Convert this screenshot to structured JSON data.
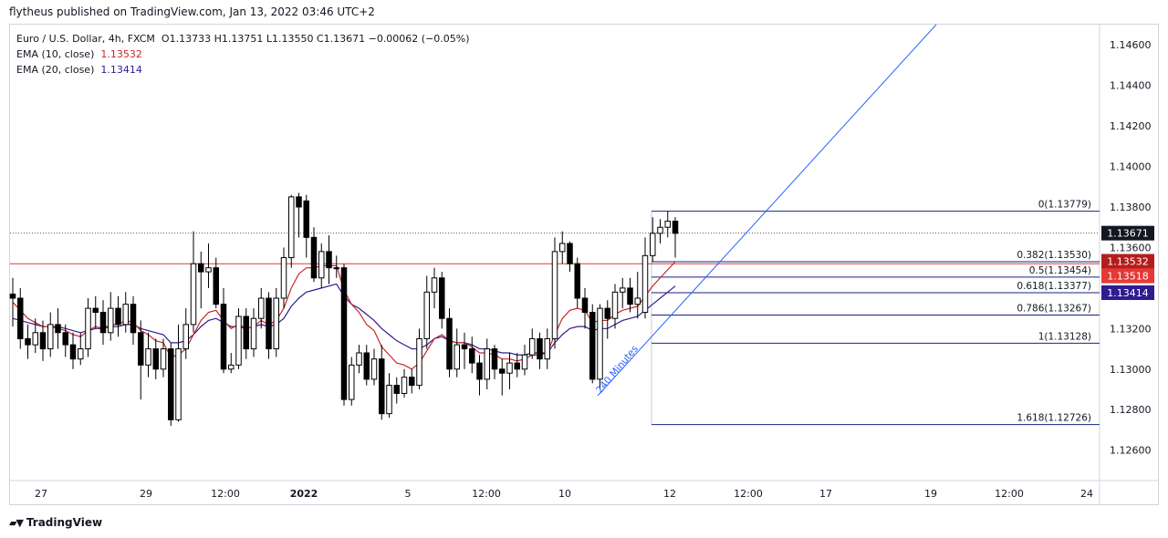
{
  "header": {
    "publish_line": "flytheus published on TradingView.com, Jan 13, 2022 03:46 UTC+2"
  },
  "legend": {
    "symbol": "Euro / U.S. Dollar, 4h, FXCM",
    "ohlc": "O1.13733  H1.13751  L1.13550  C1.13671  −0.00062 (−0.05%)",
    "ema10_label": "EMA (10, close)",
    "ema10_value": "1.13532",
    "ema20_label": "EMA (20, close)",
    "ema20_value": "1.13414"
  },
  "footer": {
    "brand": "TradingView"
  },
  "colors": {
    "candle_up_body": "#ffffff",
    "candle_down_body": "#000000",
    "ema10": "#c62828",
    "ema20": "#311b92",
    "fib_line": "#1a237e",
    "trendline": "#2962ff",
    "horizontal_line": "#e53935",
    "last_price_tag": "#131722",
    "ema10_tag": "#b71c1c",
    "hline_tag": "#e53935",
    "ema20_tag": "#311b92"
  },
  "chart_data": {
    "type": "candlestick",
    "ylim": [
      1.1245,
      1.147
    ],
    "y_ticks": [
      "1.14600",
      "1.14400",
      "1.14200",
      "1.14000",
      "1.13800",
      "1.13600",
      "1.13200",
      "1.13000",
      "1.12800",
      "1.12600"
    ],
    "x_ticks": [
      "27",
      "29",
      "12:00",
      "2022",
      "5",
      "12:00",
      "10",
      "12",
      "12:00",
      "17",
      "19",
      "12:00",
      "24"
    ],
    "last_price": "1.13671",
    "horizontal_line": {
      "value": 1.1352,
      "label": "1.13518"
    },
    "ema_tags": {
      "ema10": "1.13532",
      "ema20": "1.13414"
    },
    "fibonacci": {
      "levels": [
        {
          "label": "0(1.13779)",
          "value": 1.13779
        },
        {
          "label": "0.382(1.13530)",
          "value": 1.1353
        },
        {
          "label": "0.5(1.13454)",
          "value": 1.13454
        },
        {
          "label": "0.618(1.13377)",
          "value": 1.13377
        },
        {
          "label": "0.786(1.13267)",
          "value": 1.13267
        },
        {
          "label": "1(1.13128)",
          "value": 1.13128
        },
        {
          "label": "1.618(1.12726)",
          "value": 1.12726
        }
      ]
    },
    "trendline_label": "240 Minutes",
    "candles": [
      [
        1.1337,
        1.1335,
        1.1345,
        1.1321
      ],
      [
        1.1335,
        1.1315,
        1.134,
        1.131
      ],
      [
        1.1315,
        1.1312,
        1.1322,
        1.1305
      ],
      [
        1.1312,
        1.1318,
        1.1325,
        1.1308
      ],
      [
        1.1318,
        1.131,
        1.1324,
        1.1304
      ],
      [
        1.131,
        1.1322,
        1.1328,
        1.1306
      ],
      [
        1.1322,
        1.1318,
        1.133,
        1.131
      ],
      [
        1.1318,
        1.1312,
        1.1322,
        1.1306
      ],
      [
        1.1312,
        1.1305,
        1.1318,
        1.13
      ],
      [
        1.1305,
        1.131,
        1.1318,
        1.1302
      ],
      [
        1.131,
        1.133,
        1.1335,
        1.1306
      ],
      [
        1.133,
        1.1328,
        1.1336,
        1.132
      ],
      [
        1.1328,
        1.1318,
        1.1334,
        1.1312
      ],
      [
        1.1318,
        1.133,
        1.1338,
        1.1314
      ],
      [
        1.133,
        1.1322,
        1.1336,
        1.1316
      ],
      [
        1.1322,
        1.1332,
        1.1338,
        1.1318
      ],
      [
        1.1332,
        1.1318,
        1.1336,
        1.1312
      ],
      [
        1.1318,
        1.1302,
        1.1324,
        1.1285
      ],
      [
        1.1302,
        1.131,
        1.1318,
        1.1296
      ],
      [
        1.131,
        1.13,
        1.1315,
        1.1295
      ],
      [
        1.13,
        1.131,
        1.1315,
        1.1296
      ],
      [
        1.131,
        1.1275,
        1.1313,
        1.1272
      ],
      [
        1.1275,
        1.131,
        1.1322,
        1.1274
      ],
      [
        1.131,
        1.1322,
        1.133,
        1.1305
      ],
      [
        1.1322,
        1.1352,
        1.1368,
        1.1318
      ],
      [
        1.1352,
        1.1348,
        1.1358,
        1.133
      ],
      [
        1.1348,
        1.135,
        1.1362,
        1.134
      ],
      [
        1.135,
        1.1332,
        1.1355,
        1.133
      ],
      [
        1.1332,
        1.13,
        1.134,
        1.1298
      ],
      [
        1.13,
        1.1302,
        1.1308,
        1.1298
      ],
      [
        1.1302,
        1.1326,
        1.133,
        1.13
      ],
      [
        1.1326,
        1.131,
        1.133,
        1.1305
      ],
      [
        1.131,
        1.1325,
        1.133,
        1.1306
      ],
      [
        1.1325,
        1.1335,
        1.134,
        1.132
      ],
      [
        1.1335,
        1.131,
        1.1338,
        1.1305
      ],
      [
        1.131,
        1.1335,
        1.134,
        1.1306
      ],
      [
        1.1335,
        1.1355,
        1.136,
        1.133
      ],
      [
        1.1355,
        1.1385,
        1.1386,
        1.135
      ],
      [
        1.1385,
        1.138,
        1.1387,
        1.1365
      ],
      [
        1.1383,
        1.1365,
        1.1386,
        1.1355
      ],
      [
        1.1365,
        1.1345,
        1.137,
        1.1343
      ],
      [
        1.1345,
        1.1358,
        1.1362,
        1.134
      ],
      [
        1.1358,
        1.135,
        1.1366,
        1.1342
      ],
      [
        1.135,
        1.135,
        1.1356,
        1.1345
      ],
      [
        1.135,
        1.1285,
        1.1352,
        1.1282
      ],
      [
        1.1285,
        1.1302,
        1.1306,
        1.1282
      ],
      [
        1.1302,
        1.1308,
        1.1312,
        1.1298
      ],
      [
        1.1308,
        1.1295,
        1.1312,
        1.1292
      ],
      [
        1.1295,
        1.1305,
        1.131,
        1.1292
      ],
      [
        1.1305,
        1.1278,
        1.1312,
        1.1275
      ],
      [
        1.1278,
        1.1292,
        1.1298,
        1.1276
      ],
      [
        1.1292,
        1.1288,
        1.1296,
        1.1283
      ],
      [
        1.1288,
        1.1296,
        1.13,
        1.1286
      ],
      [
        1.1296,
        1.1292,
        1.13,
        1.1288
      ],
      [
        1.1292,
        1.1315,
        1.132,
        1.129
      ],
      [
        1.1315,
        1.1338,
        1.1346,
        1.131
      ],
      [
        1.1338,
        1.1345,
        1.135,
        1.133
      ],
      [
        1.1345,
        1.1325,
        1.1348,
        1.132
      ],
      [
        1.1325,
        1.13,
        1.133,
        1.1296
      ],
      [
        1.13,
        1.1312,
        1.132,
        1.1296
      ],
      [
        1.1312,
        1.131,
        1.1318,
        1.13
      ],
      [
        1.131,
        1.1303,
        1.1316,
        1.1298
      ],
      [
        1.1303,
        1.1295,
        1.1307,
        1.1287
      ],
      [
        1.1295,
        1.131,
        1.1315,
        1.129
      ],
      [
        1.131,
        1.13,
        1.1312,
        1.1295
      ],
      [
        1.13,
        1.1298,
        1.1305,
        1.1287
      ],
      [
        1.1298,
        1.1303,
        1.1308,
        1.129
      ],
      [
        1.1303,
        1.13,
        1.1308,
        1.1296
      ],
      [
        1.13,
        1.1307,
        1.1312,
        1.1297
      ],
      [
        1.1307,
        1.1315,
        1.132,
        1.1305
      ],
      [
        1.1315,
        1.1305,
        1.1318,
        1.13
      ],
      [
        1.1305,
        1.1315,
        1.132,
        1.13
      ],
      [
        1.1315,
        1.1358,
        1.1365,
        1.131
      ],
      [
        1.1358,
        1.1362,
        1.1368,
        1.1352
      ],
      [
        1.1362,
        1.1352,
        1.1363,
        1.1348
      ],
      [
        1.1352,
        1.1335,
        1.1355,
        1.133
      ],
      [
        1.1335,
        1.1328,
        1.134,
        1.132
      ],
      [
        1.1328,
        1.1295,
        1.1332,
        1.1293
      ],
      [
        1.1295,
        1.133,
        1.1332,
        1.129
      ],
      [
        1.133,
        1.1325,
        1.1334,
        1.1315
      ],
      [
        1.1325,
        1.1338,
        1.1342,
        1.132
      ],
      [
        1.1338,
        1.134,
        1.1345,
        1.133
      ],
      [
        1.134,
        1.1332,
        1.1345,
        1.1328
      ],
      [
        1.1332,
        1.1335,
        1.1348,
        1.1325
      ],
      [
        1.1328,
        1.1356,
        1.1365,
        1.1325
      ],
      [
        1.1356,
        1.1367,
        1.1375,
        1.1353
      ],
      [
        1.1367,
        1.137,
        1.1374,
        1.1362
      ],
      [
        1.137,
        1.1373,
        1.1378,
        1.1365
      ],
      [
        1.1373,
        1.1367,
        1.1375,
        1.1355
      ]
    ],
    "ema10": [
      1.1333,
      1.1329,
      1.1325,
      1.1323,
      1.1321,
      1.1321,
      1.132,
      1.1319,
      1.1317,
      1.1316,
      1.1319,
      1.1321,
      1.132,
      1.1322,
      1.1322,
      1.1324,
      1.1323,
      1.1319,
      1.1317,
      1.1314,
      1.1313,
      1.1306,
      1.1307,
      1.131,
      1.1317,
      1.1324,
      1.1328,
      1.1329,
      1.1324,
      1.132,
      1.1322,
      1.132,
      1.1321,
      1.1324,
      1.1322,
      1.1324,
      1.133,
      1.134,
      1.1347,
      1.135,
      1.135,
      1.1351,
      1.1351,
      1.1351,
      1.1339,
      1.1332,
      1.1328,
      1.1322,
      1.1319,
      1.1311,
      1.1307,
      1.1303,
      1.1302,
      1.13,
      1.1303,
      1.1309,
      1.1315,
      1.1317,
      1.1314,
      1.1313,
      1.1313,
      1.1311,
      1.1308,
      1.1308,
      1.1307,
      1.1305,
      1.1305,
      1.1304,
      1.1305,
      1.1307,
      1.1307,
      1.1308,
      1.1317,
      1.1325,
      1.1329,
      1.133,
      1.1329,
      1.1323,
      1.1324,
      1.1324,
      1.1327,
      1.1329,
      1.133,
      1.1331,
      1.1336,
      1.1341,
      1.1345,
      1.1349,
      1.1353
    ],
    "ema20": [
      1.1325,
      1.1324,
      1.1323,
      1.1322,
      1.1321,
      1.1321,
      1.1321,
      1.132,
      1.1319,
      1.1318,
      1.1319,
      1.132,
      1.132,
      1.1321,
      1.1321,
      1.1322,
      1.1322,
      1.132,
      1.1319,
      1.1318,
      1.1317,
      1.1313,
      1.1313,
      1.1314,
      1.1317,
      1.1321,
      1.1324,
      1.1325,
      1.1323,
      1.1321,
      1.1321,
      1.132,
      1.1321,
      1.1322,
      1.1321,
      1.1322,
      1.1325,
      1.1331,
      1.1335,
      1.1338,
      1.1339,
      1.134,
      1.1341,
      1.1342,
      1.1336,
      1.1332,
      1.133,
      1.1327,
      1.1324,
      1.132,
      1.1317,
      1.1314,
      1.1312,
      1.131,
      1.131,
      1.1312,
      1.1315,
      1.1316,
      1.1314,
      1.1313,
      1.1313,
      1.1312,
      1.131,
      1.131,
      1.1309,
      1.1308,
      1.1308,
      1.1307,
      1.1307,
      1.1308,
      1.1308,
      1.1308,
      1.1313,
      1.1317,
      1.132,
      1.1321,
      1.1321,
      1.1319,
      1.132,
      1.132,
      1.1322,
      1.1324,
      1.1325,
      1.1326,
      1.1329,
      1.1332,
      1.1335,
      1.1338,
      1.1341
    ]
  }
}
